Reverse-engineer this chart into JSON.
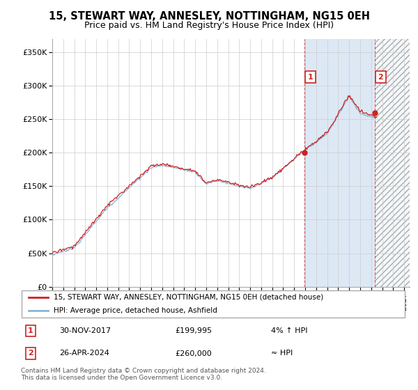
{
  "title": "15, STEWART WAY, ANNESLEY, NOTTINGHAM, NG15 0EH",
  "subtitle": "Price paid vs. HM Land Registry's House Price Index (HPI)",
  "ylim": [
    0,
    370000
  ],
  "yticks": [
    0,
    50000,
    100000,
    150000,
    200000,
    250000,
    300000,
    350000
  ],
  "ytick_labels": [
    "£0",
    "£50K",
    "£100K",
    "£150K",
    "£200K",
    "£250K",
    "£300K",
    "£350K"
  ],
  "xlim_start": 1995.0,
  "xlim_end": 2027.5,
  "hpi_color": "#8ab4d4",
  "price_color": "#cc2222",
  "marker1_date": 2017.92,
  "marker1_price": 199995,
  "marker1_label": "1",
  "marker2_date": 2024.32,
  "marker2_price": 260000,
  "marker2_label": "2",
  "shaded_blue_color": "#dde8f5",
  "shaded_hatch_color": "#cccccc",
  "legend_line1": "15, STEWART WAY, ANNESLEY, NOTTINGHAM, NG15 0EH (detached house)",
  "legend_line2": "HPI: Average price, detached house, Ashfield",
  "table_row1_num": "1",
  "table_row1_date": "30-NOV-2017",
  "table_row1_price": "£199,995",
  "table_row1_hpi": "4% ↑ HPI",
  "table_row2_num": "2",
  "table_row2_date": "26-APR-2024",
  "table_row2_price": "£260,000",
  "table_row2_hpi": "≈ HPI",
  "footnote": "Contains HM Land Registry data © Crown copyright and database right 2024.\nThis data is licensed under the Open Government Licence v3.0.",
  "grid_color": "#cccccc",
  "title_fontsize": 10.5,
  "subtitle_fontsize": 9
}
